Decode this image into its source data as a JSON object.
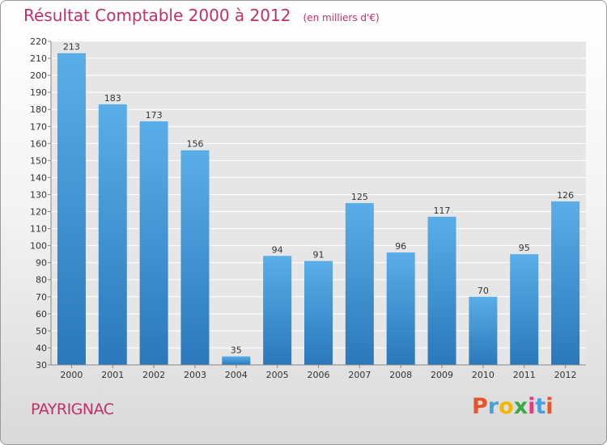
{
  "header": {
    "title": "Résultat Comptable 2000 à 2012",
    "unit": "(en milliers d'€)"
  },
  "footer": {
    "commune": "PAYRIGNAC",
    "brand_letters": [
      "P",
      "r",
      "o",
      "x",
      "i",
      "t",
      "i"
    ],
    "brand_colors": [
      "#e8542a",
      "#4aa0dc",
      "#f2b705",
      "#3aa845",
      "#e53a7d",
      "#4aa0dc",
      "#e8542a"
    ]
  },
  "colors": {
    "title": "#c0306a",
    "bar_light": "#5aaee8",
    "bar_dark": "#2a78bb"
  },
  "chart_data": {
    "type": "bar",
    "categories": [
      "2000",
      "2001",
      "2002",
      "2003",
      "2004",
      "2005",
      "2006",
      "2007",
      "2008",
      "2009",
      "2010",
      "2011",
      "2012"
    ],
    "values": [
      213,
      183,
      173,
      156,
      35,
      94,
      91,
      125,
      96,
      117,
      70,
      95,
      126
    ],
    "ylim": [
      30,
      220
    ],
    "yticks": [
      30,
      40,
      50,
      60,
      70,
      80,
      90,
      100,
      110,
      120,
      130,
      140,
      150,
      160,
      170,
      180,
      190,
      200,
      210,
      220
    ],
    "grid": true,
    "legend": false
  }
}
